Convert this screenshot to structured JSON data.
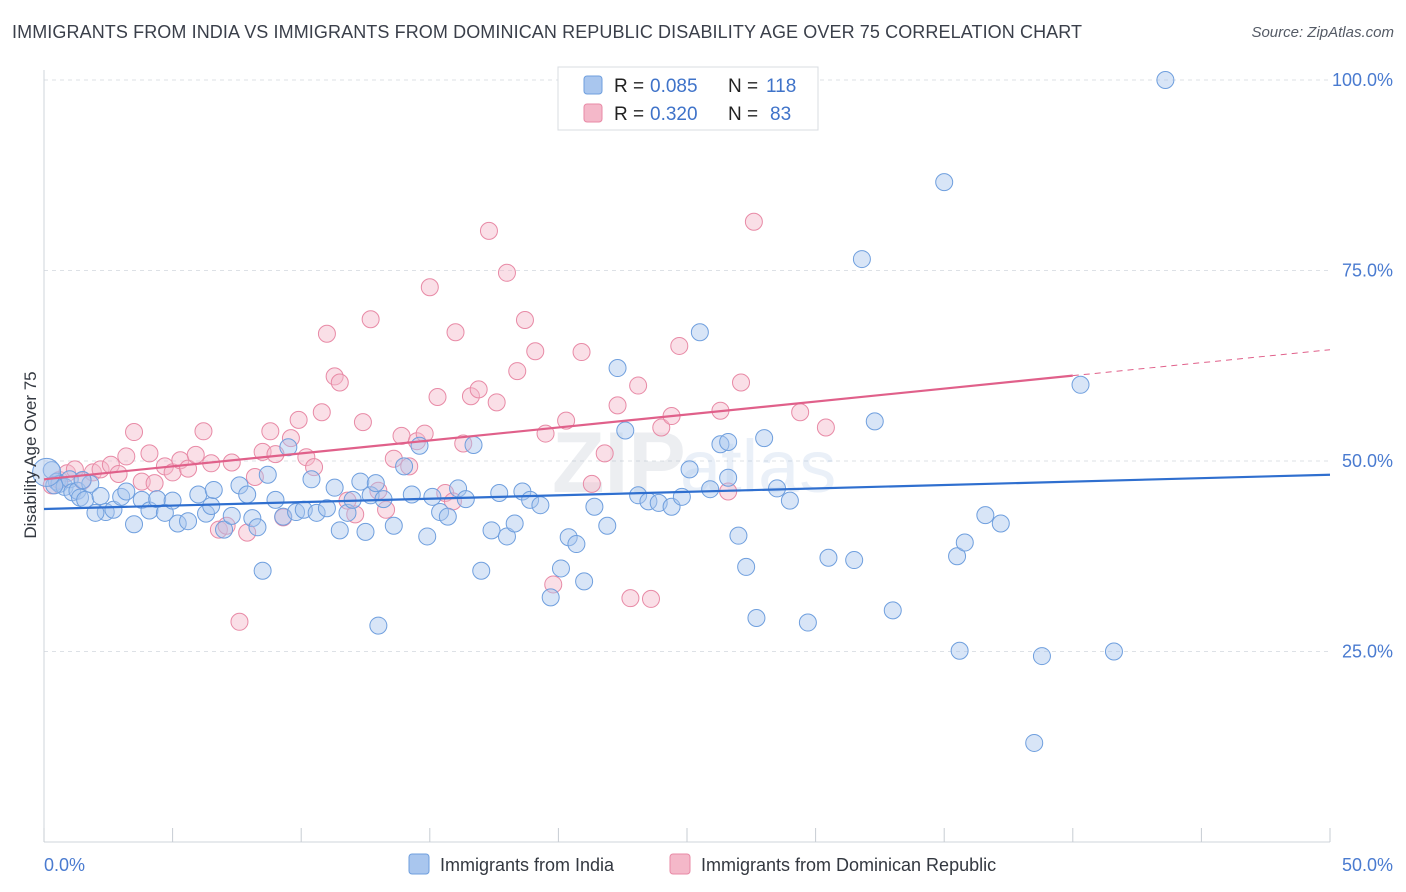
{
  "title": "IMMIGRANTS FROM INDIA VS IMMIGRANTS FROM DOMINICAN REPUBLIC DISABILITY AGE OVER 75 CORRELATION CHART",
  "source": "Source: ZipAtlas.com",
  "watermark": {
    "zip": "ZIP",
    "atlas": "atlas"
  },
  "colors": {
    "india": "#a9c6ee",
    "india_stroke": "#6f9fde",
    "india_line": "#2f6fcf",
    "dominican": "#f4b8c9",
    "dominican_stroke": "#e88aa6",
    "dominican_line": "#e0608a",
    "tick_text": "#4a7bd0"
  },
  "legend": {
    "rows": [
      {
        "r_label": "R =",
        "r_value": "0.085",
        "n_label": "N =",
        "n_value": "118"
      },
      {
        "r_label": "R =",
        "r_value": "0.320",
        "n_label": "N =",
        "n_value": "83"
      }
    ]
  },
  "chart_data": {
    "type": "scatter",
    "title": "IMMIGRANTS FROM INDIA VS IMMIGRANTS FROM DOMINICAN REPUBLIC DISABILITY AGE OVER 75 CORRELATION CHART",
    "xlabel": "",
    "ylabel": "Disability Age Over 75",
    "xlim": [
      0,
      50
    ],
    "ylim": [
      0,
      105
    ],
    "x_tick_labels": [
      "0.0%",
      "50.0%"
    ],
    "y_ticks": [
      25,
      50,
      75,
      100
    ],
    "y_tick_labels": [
      "25.0%",
      "50.0%",
      "75.0%",
      "100.0%"
    ],
    "grid": true,
    "legend_position": "top-center",
    "series": [
      {
        "name": "Immigrants from India",
        "trend": {
          "x": [
            0,
            50
          ],
          "y": [
            43.7,
            48.2
          ]
        },
        "points": [
          [
            0.3,
            48.8
          ],
          [
            0.5,
            47.3
          ],
          [
            0.6,
            47.0
          ],
          [
            0.8,
            46.6
          ],
          [
            1.0,
            47.6
          ],
          [
            1.1,
            45.9
          ],
          [
            1.3,
            46.1
          ],
          [
            1.4,
            45.2
          ],
          [
            1.6,
            44.9
          ],
          [
            1.8,
            47.0
          ],
          [
            2.2,
            45.4
          ],
          [
            2.4,
            43.3
          ],
          [
            2.7,
            43.6
          ],
          [
            3.0,
            45.3
          ],
          [
            3.2,
            46.0
          ],
          [
            3.5,
            41.7
          ],
          [
            3.8,
            44.9
          ],
          [
            4.1,
            43.5
          ],
          [
            4.4,
            45.0
          ],
          [
            4.7,
            43.2
          ],
          [
            5.0,
            44.8
          ],
          [
            5.2,
            41.8
          ],
          [
            5.6,
            42.1
          ],
          [
            6.0,
            45.6
          ],
          [
            6.3,
            43.1
          ],
          [
            6.5,
            44.1
          ],
          [
            6.6,
            46.2
          ],
          [
            7.0,
            41.0
          ],
          [
            7.3,
            42.8
          ],
          [
            7.6,
            46.8
          ],
          [
            7.9,
            45.6
          ],
          [
            8.1,
            42.5
          ],
          [
            8.3,
            41.3
          ],
          [
            8.5,
            35.6
          ],
          [
            8.7,
            48.2
          ],
          [
            9.0,
            44.9
          ],
          [
            9.3,
            42.7
          ],
          [
            9.5,
            51.8
          ],
          [
            9.8,
            43.3
          ],
          [
            10.1,
            43.6
          ],
          [
            10.4,
            47.6
          ],
          [
            10.6,
            43.2
          ],
          [
            11.0,
            43.8
          ],
          [
            11.3,
            46.5
          ],
          [
            11.5,
            40.9
          ],
          [
            11.8,
            43.2
          ],
          [
            12.0,
            44.9
          ],
          [
            12.3,
            47.3
          ],
          [
            12.5,
            40.7
          ],
          [
            12.7,
            45.5
          ],
          [
            13.0,
            28.4
          ],
          [
            13.2,
            45.0
          ],
          [
            13.6,
            41.5
          ],
          [
            14.0,
            49.3
          ],
          [
            14.3,
            45.6
          ],
          [
            14.6,
            52.0
          ],
          [
            14.9,
            40.1
          ],
          [
            15.1,
            45.3
          ],
          [
            15.4,
            43.3
          ],
          [
            15.7,
            42.7
          ],
          [
            16.1,
            46.4
          ],
          [
            16.4,
            45.0
          ],
          [
            16.7,
            52.1
          ],
          [
            17.0,
            35.6
          ],
          [
            17.4,
            40.9
          ],
          [
            17.7,
            45.8
          ],
          [
            18.0,
            40.1
          ],
          [
            18.3,
            41.8
          ],
          [
            18.6,
            46.0
          ],
          [
            18.9,
            44.9
          ],
          [
            19.3,
            44.2
          ],
          [
            19.7,
            32.1
          ],
          [
            20.1,
            35.9
          ],
          [
            20.4,
            40.0
          ],
          [
            20.7,
            39.1
          ],
          [
            21.0,
            34.2
          ],
          [
            21.4,
            44.0
          ],
          [
            21.9,
            41.5
          ],
          [
            22.3,
            62.2
          ],
          [
            22.6,
            54.0
          ],
          [
            23.1,
            45.5
          ],
          [
            23.5,
            44.7
          ],
          [
            23.9,
            44.5
          ],
          [
            24.4,
            44.0
          ],
          [
            24.8,
            45.3
          ],
          [
            25.1,
            48.9
          ],
          [
            25.5,
            66.9
          ],
          [
            25.9,
            46.3
          ],
          [
            26.3,
            52.2
          ],
          [
            26.6,
            52.5
          ],
          [
            27.0,
            40.2
          ],
          [
            27.3,
            36.1
          ],
          [
            27.7,
            29.4
          ],
          [
            28.0,
            53.0
          ],
          [
            28.5,
            46.4
          ],
          [
            29.0,
            44.8
          ],
          [
            29.7,
            28.8
          ],
          [
            30.5,
            37.3
          ],
          [
            31.5,
            37.0
          ],
          [
            31.8,
            76.5
          ],
          [
            32.3,
            55.2
          ],
          [
            33.0,
            30.4
          ],
          [
            35.0,
            86.6
          ],
          [
            35.5,
            37.5
          ],
          [
            35.8,
            39.3
          ],
          [
            36.6,
            42.9
          ],
          [
            37.2,
            41.8
          ],
          [
            38.8,
            24.4
          ],
          [
            40.3,
            60.0
          ],
          [
            41.6,
            25.0
          ],
          [
            43.6,
            100.0
          ],
          [
            38.5,
            13.0
          ],
          [
            35.6,
            25.1
          ],
          [
            26.6,
            47.8
          ],
          [
            12.9,
            47.1
          ],
          [
            2.0,
            43.2
          ],
          [
            1.5,
            47.5
          ],
          [
            0.4,
            46.8
          ]
        ]
      },
      {
        "name": "Immigrants from Dominican Republic",
        "trend": {
          "x": [
            0,
            40
          ],
          "y": [
            47.6,
            61.2
          ]
        },
        "trend_dashed": {
          "x": [
            40,
            50
          ],
          "y": [
            61.2,
            64.6
          ]
        },
        "points": [
          [
            0.3,
            46.8
          ],
          [
            0.6,
            47.5
          ],
          [
            0.9,
            48.4
          ],
          [
            1.2,
            48.9
          ],
          [
            1.5,
            47.4
          ],
          [
            1.9,
            48.5
          ],
          [
            2.2,
            48.9
          ],
          [
            2.6,
            49.5
          ],
          [
            2.9,
            48.3
          ],
          [
            3.2,
            50.6
          ],
          [
            3.5,
            53.8
          ],
          [
            3.8,
            47.3
          ],
          [
            4.1,
            51.0
          ],
          [
            4.3,
            47.1
          ],
          [
            4.7,
            49.3
          ],
          [
            5.0,
            48.5
          ],
          [
            5.3,
            50.1
          ],
          [
            5.6,
            49.0
          ],
          [
            5.9,
            50.8
          ],
          [
            6.2,
            53.9
          ],
          [
            6.5,
            49.7
          ],
          [
            6.8,
            41.0
          ],
          [
            7.1,
            41.5
          ],
          [
            7.3,
            49.8
          ],
          [
            7.6,
            28.9
          ],
          [
            7.9,
            40.6
          ],
          [
            8.2,
            47.9
          ],
          [
            8.5,
            51.2
          ],
          [
            8.8,
            53.9
          ],
          [
            9.0,
            50.9
          ],
          [
            9.3,
            42.6
          ],
          [
            9.6,
            53.0
          ],
          [
            9.9,
            55.4
          ],
          [
            10.2,
            50.5
          ],
          [
            10.5,
            49.2
          ],
          [
            10.8,
            56.4
          ],
          [
            11.0,
            66.7
          ],
          [
            11.3,
            61.1
          ],
          [
            11.5,
            60.3
          ],
          [
            11.8,
            44.8
          ],
          [
            12.1,
            43.0
          ],
          [
            12.4,
            55.1
          ],
          [
            12.7,
            68.6
          ],
          [
            13.0,
            46.1
          ],
          [
            13.3,
            43.6
          ],
          [
            13.6,
            50.3
          ],
          [
            13.9,
            53.3
          ],
          [
            14.2,
            49.3
          ],
          [
            14.5,
            52.6
          ],
          [
            14.8,
            53.6
          ],
          [
            15.0,
            72.8
          ],
          [
            15.3,
            58.4
          ],
          [
            15.6,
            45.8
          ],
          [
            16.0,
            66.9
          ],
          [
            16.3,
            52.3
          ],
          [
            16.6,
            58.5
          ],
          [
            16.9,
            59.4
          ],
          [
            17.3,
            80.2
          ],
          [
            17.6,
            57.7
          ],
          [
            18.0,
            74.7
          ],
          [
            18.4,
            61.8
          ],
          [
            18.7,
            68.5
          ],
          [
            19.1,
            64.4
          ],
          [
            19.5,
            53.6
          ],
          [
            19.8,
            33.8
          ],
          [
            20.3,
            55.3
          ],
          [
            20.9,
            64.3
          ],
          [
            21.3,
            47.0
          ],
          [
            21.8,
            51.0
          ],
          [
            22.3,
            57.3
          ],
          [
            22.8,
            32.0
          ],
          [
            23.1,
            59.9
          ],
          [
            23.6,
            31.9
          ],
          [
            24.0,
            54.4
          ],
          [
            24.4,
            55.9
          ],
          [
            24.7,
            65.1
          ],
          [
            26.3,
            56.6
          ],
          [
            26.6,
            46.0
          ],
          [
            27.1,
            60.3
          ],
          [
            27.6,
            81.4
          ],
          [
            29.4,
            56.4
          ],
          [
            30.4,
            54.4
          ],
          [
            15.9,
            44.7
          ]
        ]
      }
    ]
  },
  "bottom_legend": [
    {
      "label": "Immigrants from India"
    },
    {
      "label": "Immigrants from Dominican Republic"
    }
  ]
}
